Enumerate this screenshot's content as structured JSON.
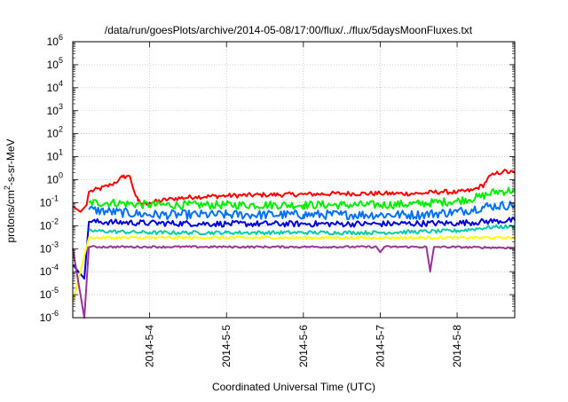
{
  "chart_data": {
    "type": "line",
    "title": "/data/run/goesPlots/archive/2014-05-08/17:00/flux/../flux/5daysMoonFluxes.txt",
    "xlabel": "Coordinated Universal Time (UTC)",
    "ylabel": {
      "prefix": "protons/cm",
      "superscript": "2",
      "suffix": "-s-sr-MeV"
    },
    "x_ticks": [
      "2014-5-4",
      "2014-5-5",
      "2014-5-6",
      "2014-5-7",
      "2014-5-8"
    ],
    "x_tick_days": [
      1,
      2,
      3,
      4,
      5
    ],
    "xlim": [
      0,
      5.75
    ],
    "y_scale": "log",
    "ylim": [
      1e-06,
      1000000.0
    ],
    "y_ticks": [
      {
        "base": "10",
        "exp": "6",
        "value": 1000000.0
      },
      {
        "base": "10",
        "exp": "5",
        "value": 100000.0
      },
      {
        "base": "10",
        "exp": "4",
        "value": 10000.0
      },
      {
        "base": "10",
        "exp": "3",
        "value": 1000.0
      },
      {
        "base": "10",
        "exp": "2",
        "value": 100.0
      },
      {
        "base": "10",
        "exp": "1",
        "value": 10.0
      },
      {
        "base": "10",
        "exp": "0",
        "value": 1.0
      },
      {
        "base": "10",
        "exp": "-1",
        "value": 0.1
      },
      {
        "base": "10",
        "exp": "-2",
        "value": 0.01
      },
      {
        "base": "10",
        "exp": "-3",
        "value": 0.001
      },
      {
        "base": "10",
        "exp": "-4",
        "value": 0.0001
      },
      {
        "base": "10",
        "exp": "-5",
        "value": 1e-05
      },
      {
        "base": "10",
        "exp": "-6",
        "value": 1e-06
      }
    ],
    "grid": true,
    "legend": "none",
    "series": [
      {
        "color": "#ff0000",
        "points": [
          [
            0.0,
            0.07
          ],
          [
            0.1,
            0.04
          ],
          [
            0.18,
            0.08
          ],
          [
            0.21,
            0.3
          ],
          [
            0.35,
            0.4
          ],
          [
            0.5,
            0.6
          ],
          [
            0.6,
            1.0
          ],
          [
            0.65,
            1.3
          ],
          [
            0.72,
            1.5
          ],
          [
            0.75,
            1.2
          ],
          [
            0.8,
            0.3
          ],
          [
            0.85,
            0.12
          ],
          [
            0.9,
            0.09
          ],
          [
            1.0,
            0.1
          ],
          [
            1.3,
            0.15
          ],
          [
            1.6,
            0.18
          ],
          [
            2.0,
            0.2
          ],
          [
            2.5,
            0.22
          ],
          [
            3.0,
            0.23
          ],
          [
            3.5,
            0.25
          ],
          [
            4.0,
            0.25
          ],
          [
            4.5,
            0.25
          ],
          [
            4.8,
            0.3
          ],
          [
            5.0,
            0.28
          ],
          [
            5.2,
            0.35
          ],
          [
            5.35,
            0.6
          ],
          [
            5.4,
            1.2
          ],
          [
            5.5,
            1.8
          ],
          [
            5.6,
            2.3
          ],
          [
            5.75,
            2.0
          ]
        ],
        "noise": 0.1
      },
      {
        "color": "#00ee00",
        "points": [
          [
            0.21,
            0.1
          ],
          [
            0.5,
            0.1
          ],
          [
            1.0,
            0.08
          ],
          [
            1.5,
            0.08
          ],
          [
            2.0,
            0.08
          ],
          [
            2.5,
            0.08
          ],
          [
            3.0,
            0.08
          ],
          [
            3.5,
            0.08
          ],
          [
            4.0,
            0.08
          ],
          [
            4.5,
            0.09
          ],
          [
            5.0,
            0.12
          ],
          [
            5.3,
            0.18
          ],
          [
            5.5,
            0.3
          ],
          [
            5.75,
            0.35
          ]
        ],
        "noise": 0.18
      },
      {
        "color": "#0070ff",
        "points": [
          [
            0.21,
            0.05
          ],
          [
            0.5,
            0.04
          ],
          [
            1.0,
            0.03
          ],
          [
            1.5,
            0.03
          ],
          [
            2.0,
            0.03
          ],
          [
            2.5,
            0.03
          ],
          [
            3.0,
            0.03
          ],
          [
            3.5,
            0.03
          ],
          [
            4.0,
            0.03
          ],
          [
            4.5,
            0.03
          ],
          [
            5.0,
            0.04
          ],
          [
            5.4,
            0.07
          ],
          [
            5.75,
            0.08
          ]
        ],
        "noise": 0.2
      },
      {
        "color": "#0000dd",
        "points": [
          [
            0.0,
            0.0002
          ],
          [
            0.15,
            5e-05
          ],
          [
            0.21,
            0.015
          ],
          [
            1.0,
            0.013
          ],
          [
            2.0,
            0.012
          ],
          [
            3.0,
            0.012
          ],
          [
            4.0,
            0.012
          ],
          [
            5.0,
            0.013
          ],
          [
            5.5,
            0.016
          ],
          [
            5.75,
            0.017
          ]
        ],
        "noise": 0.13
      },
      {
        "color": "#00ccaa",
        "points": [
          [
            0.21,
            0.006
          ],
          [
            1.0,
            0.005
          ],
          [
            2.0,
            0.005
          ],
          [
            3.0,
            0.005
          ],
          [
            4.0,
            0.005
          ],
          [
            5.0,
            0.006
          ],
          [
            5.5,
            0.009
          ],
          [
            5.75,
            0.009
          ]
        ],
        "noise": 0.08
      },
      {
        "color": "#ffff00",
        "points": [
          [
            0.0,
            5e-06
          ],
          [
            0.21,
            0.003
          ],
          [
            1.0,
            0.003
          ],
          [
            2.0,
            0.003
          ],
          [
            3.0,
            0.003
          ],
          [
            4.0,
            0.003
          ],
          [
            5.0,
            0.003
          ],
          [
            5.75,
            0.003
          ]
        ],
        "noise": 0.05
      },
      {
        "color": "#993399",
        "points": [
          [
            0.0,
            0.001
          ],
          [
            0.15,
            1e-06
          ],
          [
            0.21,
            0.0012
          ],
          [
            1.0,
            0.0012
          ],
          [
            2.0,
            0.0012
          ],
          [
            3.0,
            0.0012
          ],
          [
            3.95,
            0.0012
          ],
          [
            4.0,
            0.0007
          ],
          [
            4.05,
            0.0012
          ],
          [
            4.6,
            0.0012
          ],
          [
            4.65,
            0.0001
          ],
          [
            4.7,
            0.0012
          ],
          [
            5.75,
            0.0011
          ]
        ],
        "noise": 0.04
      }
    ]
  }
}
